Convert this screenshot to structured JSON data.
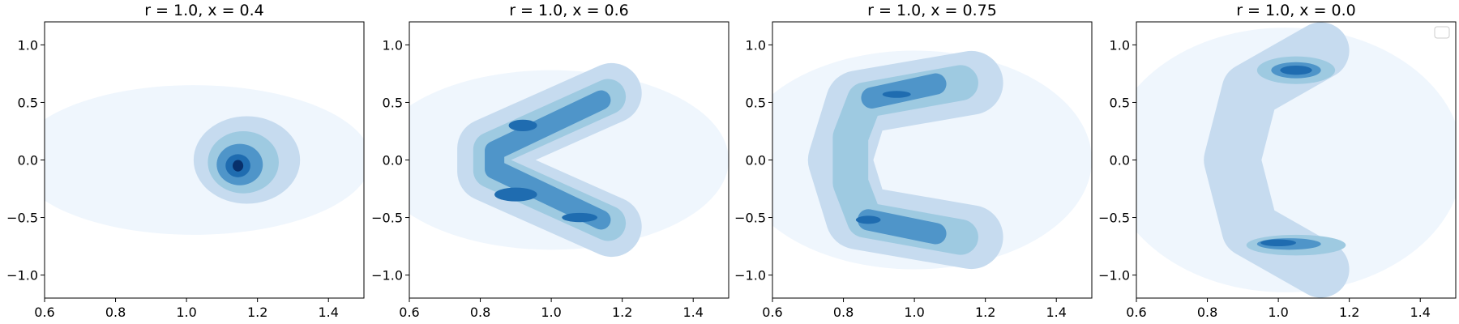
{
  "figure": {
    "background": "#ffffff",
    "colormap": "Blues"
  },
  "chart_data": [
    {
      "type": "contour",
      "title": "r = 1.0, x = 0.4",
      "xlim": [
        0.6,
        1.5
      ],
      "ylim": [
        -1.2,
        1.2
      ],
      "xticks": [
        "0.6",
        "0.8",
        "1.0",
        "1.2",
        "1.4"
      ],
      "yticks": [
        "−1.0",
        "−0.5",
        "0.0",
        "0.5",
        "1.0"
      ],
      "xtick_values": [
        0.6,
        0.8,
        1.0,
        1.2,
        1.4
      ],
      "ytick_values": [
        -1.0,
        -0.5,
        0.0,
        0.5,
        1.0
      ],
      "grid": false,
      "legend": false,
      "density_shape": "compact blob",
      "peak": [
        1.14,
        -0.05
      ],
      "regions": [
        {
          "kind": "ellipse",
          "cx": 1.02,
          "cy": 0.0,
          "rx": 0.5,
          "ry": 0.65,
          "level": 1
        },
        {
          "kind": "ellipse",
          "cx": 1.17,
          "cy": 0.0,
          "rx": 0.15,
          "ry": 0.38,
          "level": 2
        },
        {
          "kind": "ellipse",
          "cx": 1.16,
          "cy": -0.02,
          "rx": 0.1,
          "ry": 0.27,
          "level": 3
        },
        {
          "kind": "ellipse",
          "cx": 1.15,
          "cy": -0.04,
          "rx": 0.065,
          "ry": 0.18,
          "level": 4
        },
        {
          "kind": "ellipse",
          "cx": 1.145,
          "cy": -0.05,
          "rx": 0.035,
          "ry": 0.1,
          "level": 5
        },
        {
          "kind": "ellipse",
          "cx": 1.145,
          "cy": -0.05,
          "rx": 0.015,
          "ry": 0.05,
          "level": 6
        }
      ]
    },
    {
      "type": "contour",
      "title": "r = 1.0, x = 0.6",
      "xlim": [
        0.6,
        1.5
      ],
      "ylim": [
        -1.2,
        1.2
      ],
      "xticks": [
        "0.6",
        "0.8",
        "1.0",
        "1.2",
        "1.4"
      ],
      "yticks": [
        "−1.0",
        "−0.5",
        "0.0",
        "0.5",
        "1.0"
      ],
      "xtick_values": [
        0.6,
        0.8,
        1.0,
        1.2,
        1.4
      ],
      "ytick_values": [
        -1.0,
        -0.5,
        0.0,
        0.5,
        1.0
      ],
      "grid": false,
      "legend": false,
      "density_shape": "chevron opening right",
      "peak": [
        0.9,
        -0.3
      ],
      "regions": [
        {
          "kind": "ellipse",
          "cx": 1.0,
          "cy": 0.0,
          "rx": 0.5,
          "ry": 0.78,
          "level": 1
        },
        {
          "kind": "path",
          "points": [
            [
              1.17,
              0.58
            ],
            [
              0.82,
              0.1
            ],
            [
              0.82,
              -0.1
            ],
            [
              1.17,
              -0.58
            ]
          ],
          "width": 0.17,
          "level": 2
        },
        {
          "kind": "path",
          "points": [
            [
              1.16,
              0.55
            ],
            [
              0.83,
              0.09
            ],
            [
              0.83,
              -0.09
            ],
            [
              1.16,
              -0.55
            ]
          ],
          "width": 0.1,
          "level": 3
        },
        {
          "kind": "path",
          "points": [
            [
              1.14,
              0.52
            ],
            [
              0.84,
              0.08
            ],
            [
              0.84,
              -0.08
            ],
            [
              1.14,
              -0.52
            ]
          ],
          "width": 0.055,
          "level": 4
        },
        {
          "kind": "ellipse",
          "cx": 0.9,
          "cy": -0.3,
          "rx": 0.06,
          "ry": 0.06,
          "level": 5
        },
        {
          "kind": "ellipse",
          "cx": 1.08,
          "cy": -0.5,
          "rx": 0.05,
          "ry": 0.04,
          "level": 5
        },
        {
          "kind": "ellipse",
          "cx": 0.92,
          "cy": 0.3,
          "rx": 0.04,
          "ry": 0.05,
          "level": 5
        }
      ]
    },
    {
      "type": "contour",
      "title": "r = 1.0, x = 0.75",
      "xlim": [
        0.6,
        1.5
      ],
      "ylim": [
        -1.2,
        1.2
      ],
      "xticks": [
        "0.6",
        "0.8",
        "1.0",
        "1.2",
        "1.4"
      ],
      "yticks": [
        "−1.0",
        "−0.5",
        "0.0",
        "0.5",
        "1.0"
      ],
      "xtick_values": [
        0.6,
        0.8,
        1.0,
        1.2,
        1.4
      ],
      "ytick_values": [
        -1.0,
        -0.5,
        0.0,
        0.5,
        1.0
      ],
      "grid": false,
      "legend": false,
      "density_shape": "bracket opening right",
      "peak": [
        0.87,
        -0.52
      ],
      "regions": [
        {
          "kind": "ellipse",
          "cx": 1.0,
          "cy": 0.0,
          "rx": 0.5,
          "ry": 0.95,
          "level": 1
        },
        {
          "kind": "path",
          "points": [
            [
              1.16,
              0.67
            ],
            [
              0.84,
              0.5
            ],
            [
              0.79,
              0.0
            ],
            [
              0.84,
              -0.5
            ],
            [
              1.16,
              -0.67
            ]
          ],
          "width": 0.18,
          "level": 2
        },
        {
          "kind": "path",
          "points": [
            [
              1.13,
              0.67
            ],
            [
              0.86,
              0.52
            ],
            [
              0.82,
              0.2
            ],
            [
              0.82,
              -0.2
            ],
            [
              0.86,
              -0.52
            ],
            [
              1.13,
              -0.67
            ]
          ],
          "width": 0.1,
          "level": 3
        },
        {
          "kind": "path",
          "points": [
            [
              1.06,
              0.66
            ],
            [
              0.88,
              0.54
            ]
          ],
          "width": 0.06,
          "level": 4
        },
        {
          "kind": "path",
          "points": [
            [
              0.87,
              -0.52
            ],
            [
              1.06,
              -0.64
            ]
          ],
          "width": 0.06,
          "level": 4
        },
        {
          "kind": "ellipse",
          "cx": 0.87,
          "cy": -0.52,
          "rx": 0.035,
          "ry": 0.035,
          "level": 5
        },
        {
          "kind": "ellipse",
          "cx": 0.95,
          "cy": 0.57,
          "rx": 0.04,
          "ry": 0.03,
          "level": 5
        }
      ]
    },
    {
      "type": "contour",
      "title": "r = 1.0, x = 0.0",
      "xlim": [
        0.6,
        1.5
      ],
      "ylim": [
        -1.2,
        1.2
      ],
      "xticks": [
        "0.6",
        "0.8",
        "1.0",
        "1.2",
        "1.4"
      ],
      "yticks": [
        "−1.0",
        "−0.5",
        "0.0",
        "0.5",
        "1.0"
      ],
      "xtick_values": [
        0.6,
        0.8,
        1.0,
        1.2,
        1.4
      ],
      "ytick_values": [
        -1.0,
        -0.5,
        0.0,
        0.5,
        1.0
      ],
      "grid": false,
      "legend": true,
      "legend_position": "upper right",
      "legend_entries": [],
      "density_shape": "bracket with two lobes",
      "peak": [
        1.05,
        0.78
      ],
      "regions": [
        {
          "kind": "ellipse",
          "cx": 1.02,
          "cy": 0.0,
          "rx": 0.5,
          "ry": 1.15,
          "level": 1
        },
        {
          "kind": "path",
          "points": [
            [
              1.12,
              0.95
            ],
            [
              0.92,
              0.6
            ],
            [
              0.87,
              0.0
            ],
            [
              0.92,
              -0.6
            ],
            [
              1.12,
              -0.95
            ]
          ],
          "width": 0.16,
          "level": 2
        },
        {
          "kind": "ellipse",
          "cx": 1.05,
          "cy": 0.78,
          "rx": 0.11,
          "ry": 0.12,
          "level": 3
        },
        {
          "kind": "ellipse",
          "cx": 1.05,
          "cy": -0.74,
          "rx": 0.14,
          "ry": 0.09,
          "level": 3
        },
        {
          "kind": "ellipse",
          "cx": 1.05,
          "cy": 0.78,
          "rx": 0.07,
          "ry": 0.07,
          "level": 4
        },
        {
          "kind": "ellipse",
          "cx": 1.03,
          "cy": -0.73,
          "rx": 0.09,
          "ry": 0.05,
          "level": 4
        },
        {
          "kind": "ellipse",
          "cx": 1.05,
          "cy": 0.78,
          "rx": 0.045,
          "ry": 0.04,
          "level": 5
        },
        {
          "kind": "ellipse",
          "cx": 1.0,
          "cy": -0.72,
          "rx": 0.05,
          "ry": 0.03,
          "level": 5
        }
      ]
    }
  ],
  "level_colors": [
    "#eff6fd",
    "#c6dbef",
    "#9ecae1",
    "#4f95c9",
    "#1f6cb0",
    "#08306b"
  ]
}
